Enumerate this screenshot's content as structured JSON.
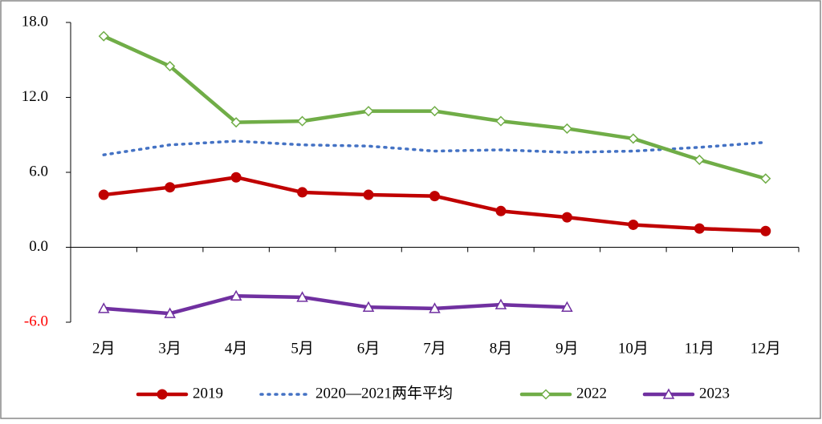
{
  "chart_data": {
    "type": "line",
    "categories": [
      "2月",
      "3月",
      "4月",
      "5月",
      "6月",
      "7月",
      "8月",
      "9月",
      "10月",
      "11月",
      "12月"
    ],
    "series": [
      {
        "name": "2019",
        "color": "#c00000",
        "marker": "circle",
        "values": [
          4.2,
          4.8,
          5.6,
          4.4,
          4.2,
          4.1,
          2.9,
          2.4,
          1.8,
          1.5,
          1.3
        ]
      },
      {
        "name": "2020—2021两年平均",
        "color": "#4472c4",
        "dash": "dotted",
        "values": [
          7.4,
          8.2,
          8.5,
          8.2,
          8.1,
          7.7,
          7.8,
          7.6,
          7.7,
          8.0,
          8.4
        ]
      },
      {
        "name": "2022",
        "color": "#70ad47",
        "marker": "diamond",
        "values": [
          16.9,
          14.5,
          10.0,
          10.1,
          10.9,
          10.9,
          10.1,
          9.5,
          8.7,
          7.0,
          5.5
        ]
      },
      {
        "name": "2023",
        "color": "#7030a0",
        "marker": "triangle",
        "values": [
          -4.9,
          -5.3,
          -3.9,
          -4.0,
          -4.8,
          -4.9,
          -4.6,
          -4.8,
          null,
          null,
          null
        ]
      }
    ],
    "ylim": [
      -6,
      18
    ],
    "yticks": [
      {
        "value": -6,
        "label": "-6.0",
        "color": "#ff0000"
      },
      {
        "value": 0,
        "label": "0.0"
      },
      {
        "value": 6,
        "label": "6.0"
      },
      {
        "value": 12,
        "label": "12.0"
      },
      {
        "value": 18,
        "label": "18.0"
      }
    ],
    "legend": "bottom"
  }
}
